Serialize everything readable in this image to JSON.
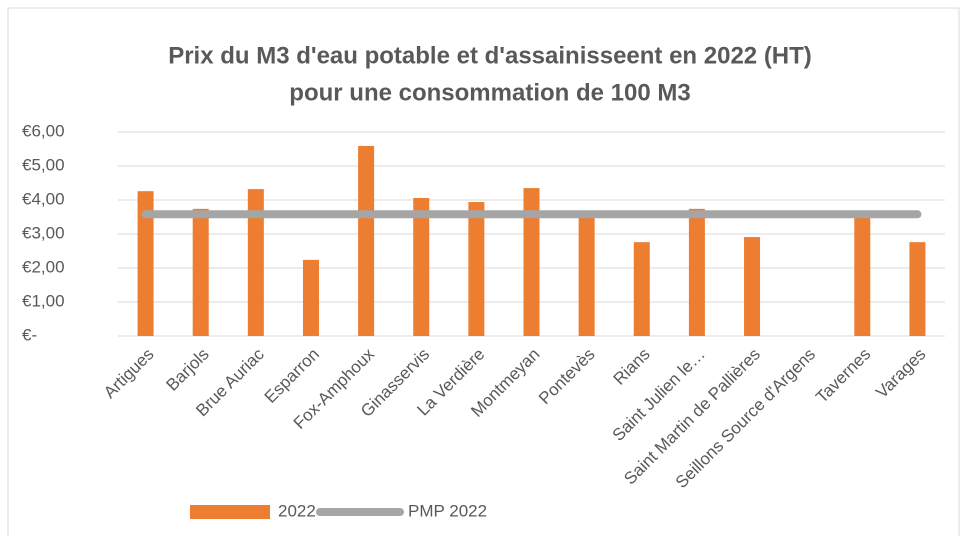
{
  "chart_data": {
    "type": "bar",
    "title": [
      "Prix du M3 d'eau potable et d'assainisseent en 2022 (HT)",
      "pour une consommation de 100 M3"
    ],
    "categories": [
      "Artigues",
      "Barjols",
      "Brue Auriac",
      "Esparron",
      "Fox-Amphoux",
      "Ginasservis",
      "La Verdière",
      "Montmeyan",
      "Pontevès",
      "Rians",
      "Saint Julien le…",
      "Saint Martin de Pallières",
      "Seillons Source d'Argens",
      "Tavernes",
      "Varages"
    ],
    "series": [
      {
        "name": "2022",
        "type": "bar",
        "color": "#ed7d31",
        "values": [
          4.26,
          3.74,
          4.32,
          2.24,
          5.59,
          4.06,
          3.94,
          4.35,
          3.59,
          2.76,
          3.74,
          2.91,
          null,
          3.6,
          2.76
        ]
      },
      {
        "name": "PMP 2022",
        "type": "line",
        "color": "#a5a5a5",
        "values": [
          3.58,
          3.58,
          3.58,
          3.58,
          3.58,
          3.58,
          3.58,
          3.58,
          3.58,
          3.58,
          3.58,
          3.58,
          3.58,
          3.58,
          3.58
        ]
      }
    ],
    "ylim": [
      0,
      6
    ],
    "yticks": [
      {
        "value": 0,
        "label": "€-"
      },
      {
        "value": 1,
        "label": "€1,00"
      },
      {
        "value": 2,
        "label": "€2,00"
      },
      {
        "value": 3,
        "label": "€3,00"
      },
      {
        "value": 4,
        "label": "€4,00"
      },
      {
        "value": 5,
        "label": "€5,00"
      },
      {
        "value": 6,
        "label": "€6,00"
      }
    ],
    "grid": true,
    "legend": "bottom"
  }
}
